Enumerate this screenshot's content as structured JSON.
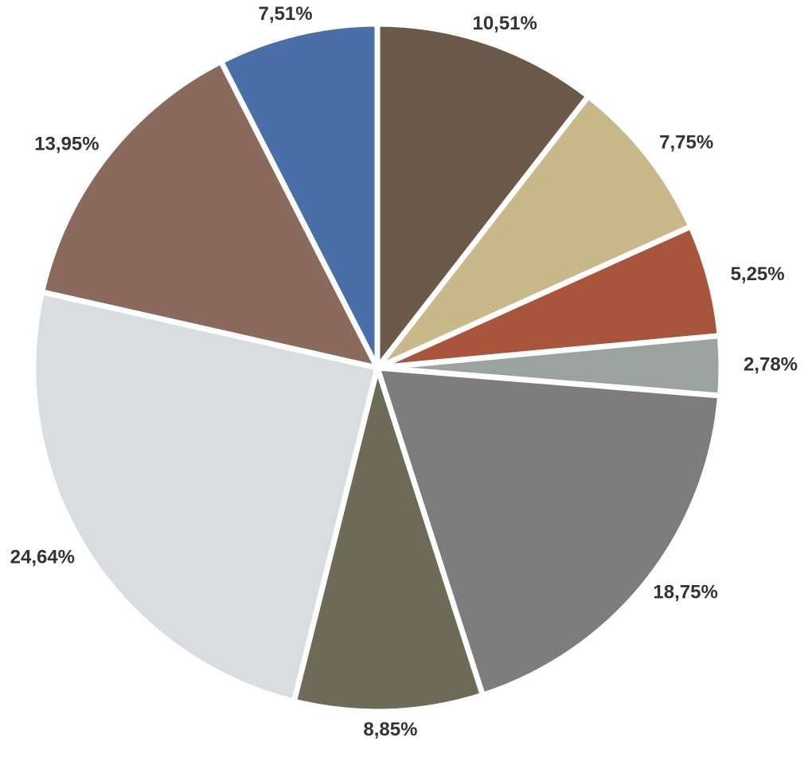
{
  "chart_data": {
    "type": "pie",
    "categories": [
      null,
      null,
      null,
      null,
      null,
      null,
      null,
      null,
      null
    ],
    "values": [
      10.51,
      7.75,
      5.25,
      2.78,
      18.75,
      8.85,
      24.64,
      13.95,
      7.51
    ],
    "value_labels": [
      "10,51%",
      "7,75%",
      "5,25%",
      "2,78%",
      "18,75%",
      "8,85%",
      "24,64%",
      "13,95%",
      "7,51%"
    ],
    "colors": [
      "#6b5a4a",
      "#c9b98a",
      "#a8553c",
      "#9aa3a0",
      "#7d7d7d",
      "#6e6a58",
      "#d9dde0",
      "#8a6a5c",
      "#4a6fa8"
    ]
  }
}
